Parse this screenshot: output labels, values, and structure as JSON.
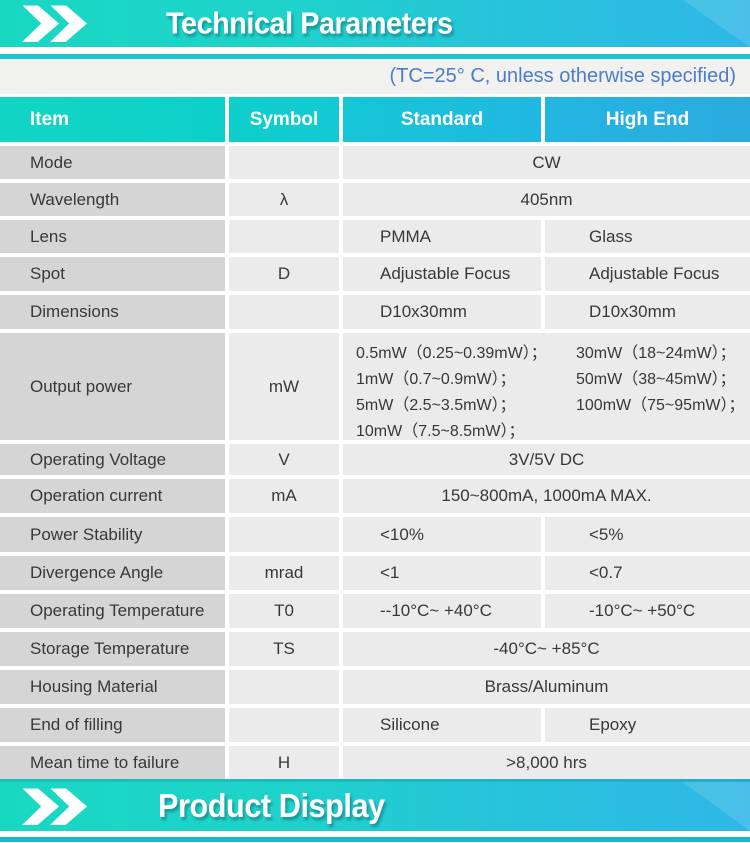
{
  "page": {
    "top_banner_title": "Technical Parameters",
    "condition_note": "(TC=25° C, unless otherwise specified)",
    "bottom_banner_title": "Product Display"
  },
  "colors": {
    "banner_teal": "#19d8c2",
    "banner_blue": "#2fb7e6",
    "header_teal": "#12d5c3",
    "header_blue": "#2cabdf",
    "item_cell_gray": "#d5d5d5",
    "value_cell_gray": "#ebebeb",
    "note_blue": "#4c7ccb",
    "teal_strip": "#1cc5cf"
  },
  "table": {
    "headers": {
      "item": "Item",
      "symbol": "Symbol",
      "standard": "Standard",
      "high_end": "High End"
    },
    "rows": [
      {
        "item": "Mode",
        "symbol": "",
        "span": "CW"
      },
      {
        "item": "Wavelength",
        "symbol": "λ",
        "span": "405nm"
      },
      {
        "item": "Lens",
        "symbol": "",
        "standard": "PMMA",
        "high_end": "Glass"
      },
      {
        "item": "Spot",
        "symbol": "D",
        "standard": "Adjustable Focus",
        "high_end": "Adjustable Focus"
      },
      {
        "item": "Dimensions",
        "symbol": "",
        "standard": "D10x30mm",
        "high_end": "D10x30mm"
      },
      {
        "item": "Output power",
        "symbol": "mW",
        "standard_lines": [
          "0.5mW（0.25~0.39mW）；",
          "1mW（0.7~0.9mW）；",
          "5mW（2.5~3.5mW）；",
          "10mW（7.5~8.5mW）；"
        ],
        "high_end_lines": [
          "30mW（18~24mW）；",
          "50mW（38~45mW）；",
          "100mW（75~95mW）；"
        ]
      },
      {
        "item": "Operating Voltage",
        "symbol": "V",
        "span": "3V/5V DC"
      },
      {
        "item": "Operation current",
        "symbol": "mA",
        "span": "150~800mA, 1000mA MAX."
      },
      {
        "item": "Power Stability",
        "symbol": "",
        "standard": "<10%",
        "high_end": "<5%"
      },
      {
        "item": "Divergence Angle",
        "symbol": "mrad",
        "standard": "<1",
        "high_end": "<0.7"
      },
      {
        "item": "Operating Temperature",
        "symbol": "T0",
        "standard": "--10°C~ +40°C",
        "high_end": "-10°C~ +50°C"
      },
      {
        "item": "Storage Temperature",
        "symbol": "TS",
        "span": "-40°C~ +85°C"
      },
      {
        "item": "Housing Material",
        "symbol": "",
        "span": "Brass/Aluminum"
      },
      {
        "item": "End of filling",
        "symbol": "",
        "standard": "Silicone",
        "high_end": "Epoxy"
      },
      {
        "item": "Mean time to failure",
        "symbol": "H",
        "span": ">8,000 hrs"
      }
    ]
  }
}
